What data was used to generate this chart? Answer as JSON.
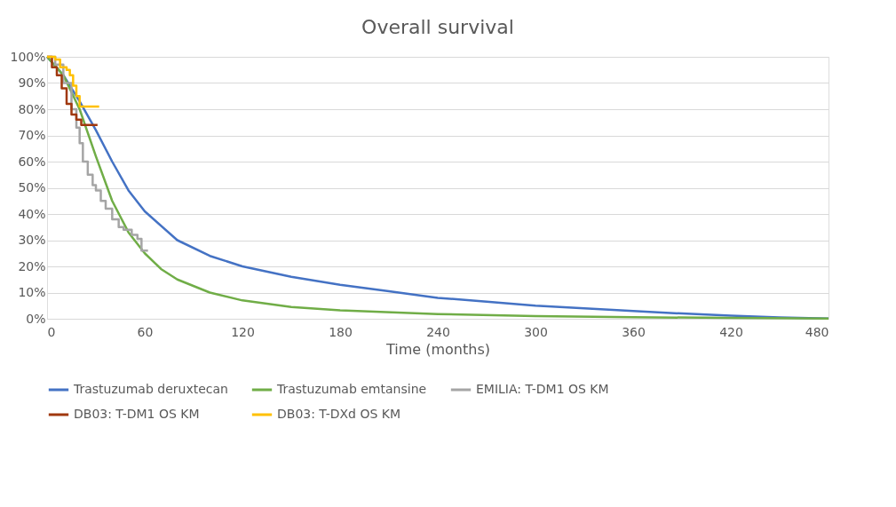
{
  "chart_data": {
    "type": "line",
    "title": "Overall survival",
    "xlabel": "Time (months)",
    "xlim": [
      0,
      480
    ],
    "xticks": [
      0,
      60,
      120,
      180,
      240,
      300,
      360,
      420,
      480
    ],
    "ylim": [
      0,
      100
    ],
    "yticks": [
      {
        "value": 0,
        "label": "0%"
      },
      {
        "value": 10,
        "label": "10%"
      },
      {
        "value": 20,
        "label": "20%"
      },
      {
        "value": 30,
        "label": "30%"
      },
      {
        "value": 40,
        "label": "40%"
      },
      {
        "value": 50,
        "label": "50%"
      },
      {
        "value": 60,
        "label": "60%"
      },
      {
        "value": 70,
        "label": "70%"
      },
      {
        "value": 80,
        "label": "80%"
      },
      {
        "value": 90,
        "label": "90%"
      },
      {
        "value": 100,
        "label": "100%"
      }
    ],
    "grid": "y",
    "legend": "bottom",
    "marker": "none",
    "line_style": "solid",
    "series": [
      {
        "name": "Trastuzumab deruxtecan",
        "color": "#4472c4",
        "type": "line",
        "x": [
          0,
          10,
          20,
          30,
          40,
          50,
          60,
          80,
          100,
          120,
          150,
          180,
          210,
          240,
          270,
          300,
          330,
          360,
          390,
          420,
          450,
          480
        ],
        "values": [
          100,
          93,
          83,
          72,
          60,
          49,
          41,
          30,
          24,
          20,
          16,
          13,
          10.5,
          8,
          6.5,
          5,
          4,
          3,
          2,
          1.2,
          0.5,
          0.1
        ]
      },
      {
        "name": "Trastuzumab emtansine",
        "color": "#70ad47",
        "type": "line",
        "x": [
          0,
          10,
          20,
          30,
          40,
          50,
          60,
          70,
          80,
          100,
          120,
          150,
          180,
          240,
          300,
          360,
          420,
          480
        ],
        "values": [
          100,
          93,
          80,
          62,
          45,
          33,
          25,
          19,
          15,
          10,
          7,
          4.5,
          3.2,
          1.8,
          1,
          0.6,
          0.3,
          0.1
        ]
      },
      {
        "name": "EMILIA: T-DM1 OS KM",
        "color": "#a5a5a5",
        "type": "step",
        "x": [
          0,
          5,
          10,
          15,
          18,
          20,
          22,
          25,
          28,
          30,
          33,
          36,
          40,
          44,
          47,
          52,
          55.5,
          58,
          62
        ],
        "values": [
          100,
          97,
          90,
          80,
          73,
          67,
          60,
          55,
          51,
          49,
          45,
          42,
          38,
          35,
          34,
          32,
          30.5,
          26,
          26
        ]
      },
      {
        "name": "DB03: T-DM1 OS KM",
        "color": "#a0380e",
        "type": "step",
        "x": [
          0,
          3,
          6,
          9,
          12,
          15,
          18,
          21,
          31
        ],
        "values": [
          100,
          96,
          93,
          88,
          82,
          78,
          76,
          74,
          74
        ]
      },
      {
        "name": "DB03: T-DXd OS KM",
        "color": "#ffc000",
        "type": "step",
        "x": [
          0,
          5,
          8,
          12,
          14,
          16,
          18,
          20,
          32
        ],
        "values": [
          100,
          99,
          96,
          95,
          93,
          89,
          85,
          81,
          81
        ]
      }
    ]
  }
}
